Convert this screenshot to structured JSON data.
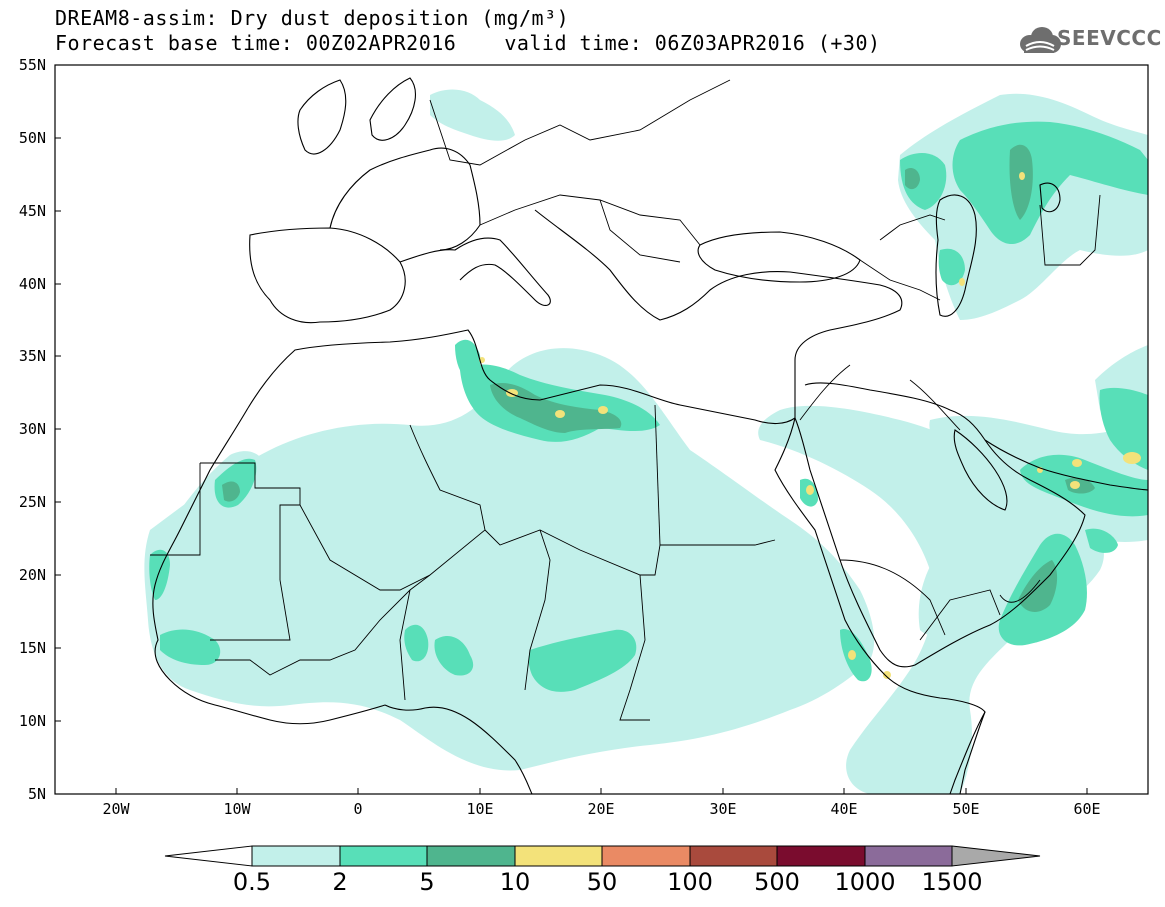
{
  "title": {
    "line1": "DREAM8-assim: Dry dust deposition (mg/m³)",
    "base_time": "Forecast base time: 00Z02APR2016",
    "valid_time": "valid time: 06Z03APR2016 (+30)"
  },
  "logo": {
    "text": "SEEVCCC",
    "icon": "cloud-icon"
  },
  "map": {
    "lat_labels": [
      "55N",
      "50N",
      "45N",
      "40N",
      "35N",
      "30N",
      "25N",
      "20N",
      "15N",
      "10N",
      "5N"
    ],
    "lon_labels": [
      "20W",
      "10W",
      "0",
      "10E",
      "20E",
      "30E",
      "40E",
      "50E",
      "60E"
    ],
    "extent": {
      "lon_min": -25,
      "lon_max": 65,
      "lat_min": 5,
      "lat_max": 55
    }
  },
  "colorbar": {
    "labels": [
      "0.5",
      "2",
      "5",
      "10",
      "50",
      "100",
      "500",
      "1000",
      "1500"
    ],
    "colors": [
      "#c2f0ea",
      "#58dfb8",
      "#4fb58e",
      "#f3e27a",
      "#ea8a64",
      "#a94a3d",
      "#7a0c2e",
      "#8b6b9a",
      "#a9a9a9"
    ],
    "under_color": "#ffffff",
    "over_color": "#a9a9a9"
  },
  "legend": {
    "level_05": "#c2f0ea",
    "level_2": "#58dfb8",
    "level_5": "#4fb58e",
    "level_10": "#f3e27a"
  }
}
